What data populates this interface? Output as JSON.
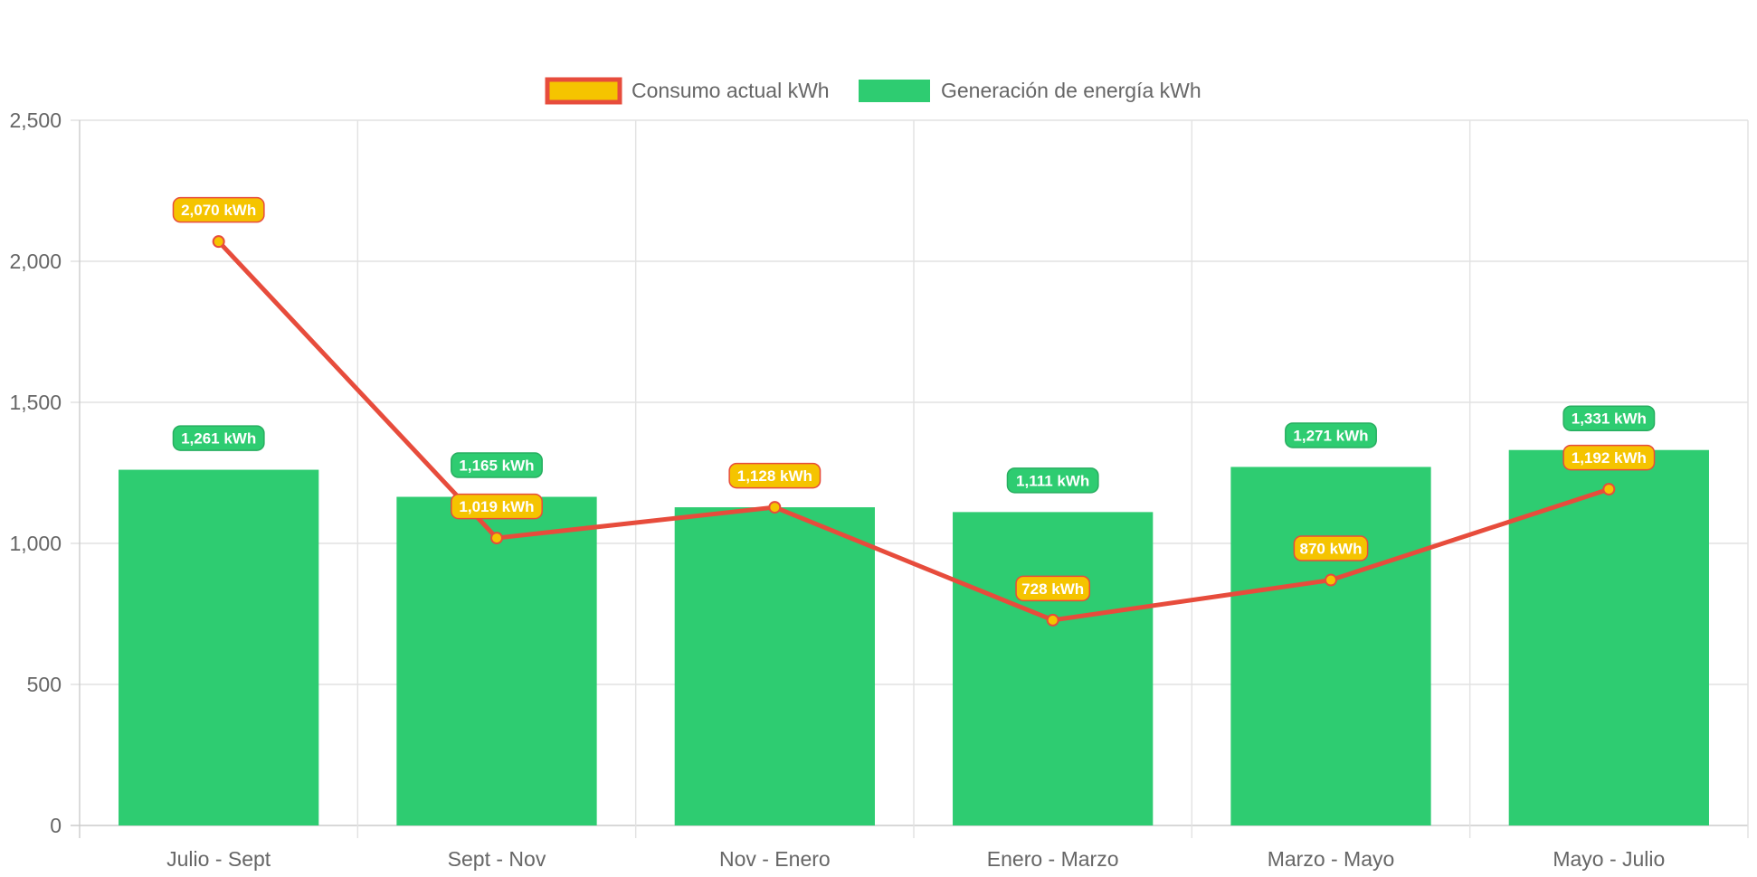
{
  "chart_data": {
    "type": "bar",
    "categories": [
      "Julio - Sept",
      "Sept - Nov",
      "Nov - Enero",
      "Enero - Marzo",
      "Marzo - Mayo",
      "Mayo - Julio"
    ],
    "series": [
      {
        "name": "Consumo actual kWh",
        "type": "line",
        "values": [
          2070,
          1019,
          1128,
          728,
          870,
          1192
        ],
        "labels": [
          "2,070 kWh",
          "1,019 kWh",
          "1,128 kWh",
          "728 kWh",
          "870 kWh",
          "1,192 kWh"
        ],
        "color": "#e74c3c",
        "fill_color": "#f5c400"
      },
      {
        "name": "Generación de energía kWh",
        "type": "bar",
        "values": [
          1261,
          1165,
          1128,
          1111,
          1271,
          1331
        ],
        "labels": [
          "1,261 kWh",
          "1,165 kWh",
          "",
          "1,111 kWh",
          "1,271 kWh",
          "1,331 kWh"
        ],
        "color": "#2ecc71"
      }
    ],
    "ylim": [
      0,
      2500
    ],
    "yticks": [
      0,
      500,
      1000,
      1500,
      2000,
      2500
    ],
    "ytick_labels": [
      "0",
      "500",
      "1,000",
      "1,500",
      "2,000",
      "2,500"
    ],
    "grid": true,
    "legend": "top-center",
    "title": "",
    "xlabel": "",
    "ylabel": ""
  }
}
